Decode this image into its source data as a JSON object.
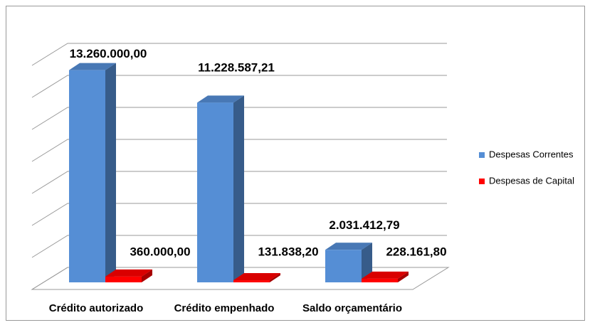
{
  "chart_data": {
    "type": "bar3d",
    "categories": [
      "Crédito autorizado",
      "Crédito empenhado",
      "Saldo orçamentário"
    ],
    "series": [
      {
        "name": "Despesas Correntes",
        "color": "#558ed5",
        "values": [
          13260000,
          11228587.21,
          2031412.79
        ],
        "value_labels": [
          "13.260.000,00",
          "11.228.587,21",
          "2.031.412,79"
        ]
      },
      {
        "name": "Despesas de Capital",
        "color": "#ff0000",
        "values": [
          360000,
          131838.2,
          228161.8
        ],
        "value_labels": [
          "360.000,00",
          "131.838,20",
          "228.161,80"
        ]
      }
    ],
    "ylim": [
      0,
      14000000
    ],
    "yticks": [
      0,
      2000000,
      4000000,
      6000000,
      8000000,
      10000000,
      12000000,
      14000000
    ],
    "grid": true,
    "legend": "right"
  }
}
